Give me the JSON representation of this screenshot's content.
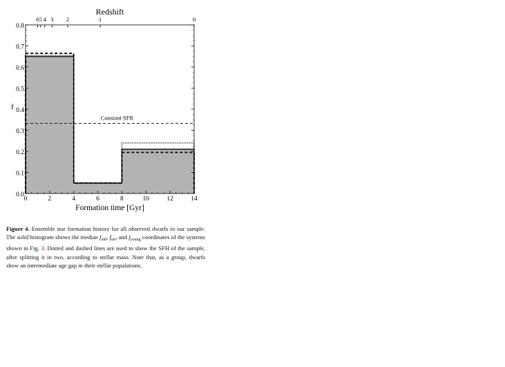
{
  "chart_data": {
    "type": "histogram",
    "title": "Redshift",
    "xlabel": "Formation time [Gyr]",
    "ylabel": "f",
    "xlim": [
      0,
      14
    ],
    "ylim": [
      0,
      0.8
    ],
    "xticks": [
      "0",
      "2",
      "4",
      "6",
      "8",
      "10",
      "12",
      "14"
    ],
    "yticks": [
      "0.0",
      "0.1",
      "0.2",
      "0.3",
      "0.4",
      "0.5",
      "0.6",
      "0.7",
      "0.8"
    ],
    "top_axis_ticks": [
      {
        "label": "6",
        "x": 1.0
      },
      {
        "label": "5",
        "x": 1.25
      },
      {
        "label": "4",
        "x": 1.6
      },
      {
        "label": "3",
        "x": 2.2
      },
      {
        "label": "2",
        "x": 3.5
      },
      {
        "label": "1",
        "x": 6.2
      },
      {
        "label": "0",
        "x": 14.0
      }
    ],
    "bins": [
      [
        0,
        4
      ],
      [
        4,
        8
      ],
      [
        8,
        14
      ]
    ],
    "series": [
      {
        "style": "solid-filled",
        "values": [
          0.65,
          0.05,
          0.21
        ]
      },
      {
        "style": "dotted",
        "values": [
          0.655,
          0.048,
          0.24
        ]
      },
      {
        "style": "dashed",
        "values": [
          0.665,
          0.05,
          0.195
        ]
      }
    ],
    "reference_line": {
      "label": "Constant SFR",
      "y": 0.333
    }
  },
  "caption": {
    "label": "Figure 4.",
    "text_1": "Ensemble star formation history for all observed dwarfs in our sample. The solid histogram shows the median ",
    "f_old": "old",
    "text_2": ", ",
    "f_int": "int",
    "text_3": ", and ",
    "f_young": "young",
    "text_4": " coordinates of the systems shown in Fig. ",
    "fig_ref": "3",
    "text_5": ". Dotted and dashed lines are used to show the SFH of the sample, after splitting it in two, according to stellar mass. Note that, as a group, dwarfs show an intermediate age gap in their stellar populations."
  },
  "colors": {
    "fill": "#b3b3b3",
    "line": "#000000",
    "link": "#c0000a"
  }
}
